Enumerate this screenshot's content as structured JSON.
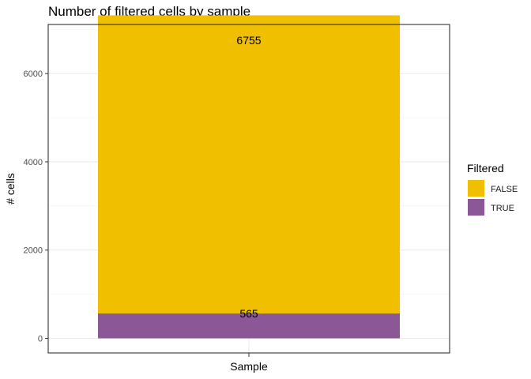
{
  "chart_data": {
    "type": "bar",
    "stacked": true,
    "title": "Number of filtered cells by sample",
    "xlabel": "Sample",
    "ylabel": "# cells",
    "categories": [
      ""
    ],
    "series": [
      {
        "name": "FALSE",
        "values": [
          6755
        ],
        "color": "#F0C000"
      },
      {
        "name": "TRUE",
        "values": [
          565
        ],
        "color": "#8B5797"
      }
    ],
    "data_labels": [
      "6755",
      "565"
    ],
    "ylim": [
      -308,
      6755
    ],
    "yticks": [
      0,
      2000,
      4000,
      6000
    ],
    "ytick_labels": [
      "0",
      "2000",
      "4000",
      "6000"
    ],
    "grid": true,
    "legend": {
      "title": "Filtered",
      "position": "right",
      "entries": [
        "FALSE",
        "TRUE"
      ]
    }
  }
}
